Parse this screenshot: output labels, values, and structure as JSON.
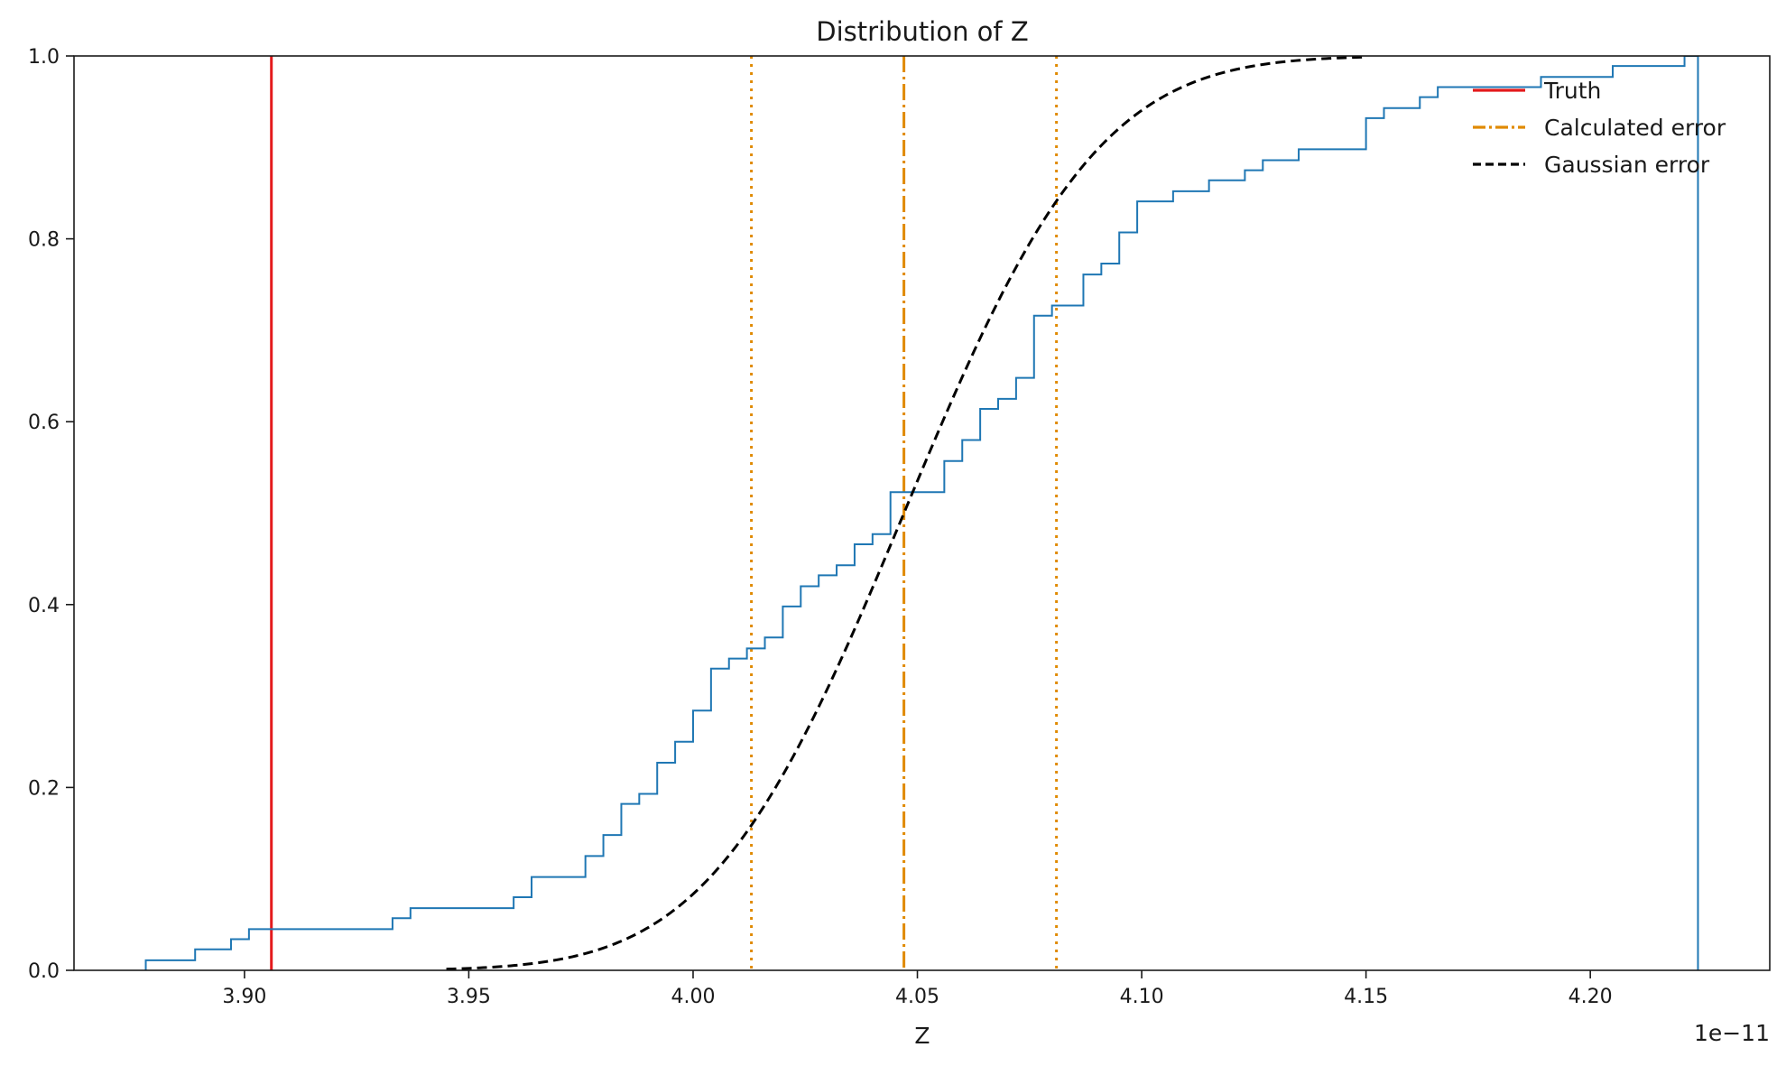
{
  "chart_data": {
    "type": "line",
    "title": "Distribution of Z",
    "xlabel": "Z",
    "ylabel": "",
    "x_offset_label": "1e−11",
    "xlim": [
      3.862,
      4.24
    ],
    "ylim": [
      0,
      1.0
    ],
    "x_ticks": [
      3.9,
      3.95,
      4.0,
      4.05,
      4.1,
      4.15,
      4.2
    ],
    "x_tick_labels": [
      "3.90",
      "3.95",
      "4.00",
      "4.05",
      "4.10",
      "4.15",
      "4.20"
    ],
    "y_ticks": [
      0.0,
      0.2,
      0.4,
      0.6,
      0.8,
      1.0
    ],
    "y_tick_labels": [
      "0.0",
      "0.2",
      "0.4",
      "0.6",
      "0.8",
      "1.0"
    ],
    "grid": false,
    "legend_position": "top-right",
    "legend": [
      {
        "label": "Truth",
        "color": "#e41a1c",
        "style": "solid"
      },
      {
        "label": "Calculated error",
        "color": "#e08a00",
        "style": "dashdot"
      },
      {
        "label": "Gaussian error",
        "color": "#000000",
        "style": "dashed"
      }
    ],
    "colors": {
      "ecdf": "#1f77b4",
      "truth": "#e41a1c",
      "calculated": "#e08a00",
      "gaussian": "#000000"
    },
    "truth_x": 3.906,
    "calculated_mean_x": 4.047,
    "calculated_bounds_x": [
      4.013,
      4.081
    ],
    "gaussian_mean": 4.047,
    "gaussian_sigma": 0.034,
    "gaussian_range": [
      3.945,
      4.15
    ],
    "ecdf_end_x": 4.224,
    "ecdf_steps": [
      [
        3.878,
        0.0
      ],
      [
        3.878,
        0.011
      ],
      [
        3.889,
        0.011
      ],
      [
        3.889,
        0.023
      ],
      [
        3.897,
        0.023
      ],
      [
        3.897,
        0.034
      ],
      [
        3.901,
        0.034
      ],
      [
        3.901,
        0.045
      ],
      [
        3.933,
        0.045
      ],
      [
        3.933,
        0.057
      ],
      [
        3.937,
        0.057
      ],
      [
        3.937,
        0.068
      ],
      [
        3.96,
        0.068
      ],
      [
        3.96,
        0.08
      ],
      [
        3.964,
        0.08
      ],
      [
        3.964,
        0.102
      ],
      [
        3.976,
        0.102
      ],
      [
        3.976,
        0.125
      ],
      [
        3.98,
        0.125
      ],
      [
        3.98,
        0.148
      ],
      [
        3.984,
        0.148
      ],
      [
        3.984,
        0.182
      ],
      [
        3.988,
        0.182
      ],
      [
        3.988,
        0.193
      ],
      [
        3.992,
        0.193
      ],
      [
        3.992,
        0.227
      ],
      [
        3.996,
        0.227
      ],
      [
        3.996,
        0.25
      ],
      [
        4.0,
        0.25
      ],
      [
        4.0,
        0.284
      ],
      [
        4.004,
        0.284
      ],
      [
        4.004,
        0.33
      ],
      [
        4.008,
        0.33
      ],
      [
        4.008,
        0.341
      ],
      [
        4.012,
        0.341
      ],
      [
        4.012,
        0.352
      ],
      [
        4.016,
        0.352
      ],
      [
        4.016,
        0.364
      ],
      [
        4.02,
        0.364
      ],
      [
        4.02,
        0.398
      ],
      [
        4.024,
        0.398
      ],
      [
        4.024,
        0.42
      ],
      [
        4.028,
        0.42
      ],
      [
        4.028,
        0.432
      ],
      [
        4.032,
        0.432
      ],
      [
        4.032,
        0.443
      ],
      [
        4.036,
        0.443
      ],
      [
        4.036,
        0.466
      ],
      [
        4.04,
        0.466
      ],
      [
        4.04,
        0.477
      ],
      [
        4.044,
        0.477
      ],
      [
        4.044,
        0.523
      ],
      [
        4.052,
        0.523
      ],
      [
        4.052,
        0.523
      ],
      [
        4.056,
        0.523
      ],
      [
        4.056,
        0.557
      ],
      [
        4.06,
        0.557
      ],
      [
        4.06,
        0.58
      ],
      [
        4.064,
        0.58
      ],
      [
        4.064,
        0.614
      ],
      [
        4.068,
        0.614
      ],
      [
        4.068,
        0.625
      ],
      [
        4.072,
        0.625
      ],
      [
        4.072,
        0.648
      ],
      [
        4.076,
        0.648
      ],
      [
        4.076,
        0.716
      ],
      [
        4.08,
        0.716
      ],
      [
        4.08,
        0.727
      ],
      [
        4.087,
        0.727
      ],
      [
        4.087,
        0.761
      ],
      [
        4.091,
        0.761
      ],
      [
        4.091,
        0.773
      ],
      [
        4.095,
        0.773
      ],
      [
        4.095,
        0.807
      ],
      [
        4.099,
        0.807
      ],
      [
        4.099,
        0.841
      ],
      [
        4.107,
        0.841
      ],
      [
        4.107,
        0.852
      ],
      [
        4.115,
        0.852
      ],
      [
        4.115,
        0.864
      ],
      [
        4.123,
        0.864
      ],
      [
        4.123,
        0.875
      ],
      [
        4.127,
        0.875
      ],
      [
        4.127,
        0.886
      ],
      [
        4.135,
        0.886
      ],
      [
        4.135,
        0.898
      ],
      [
        4.15,
        0.898
      ],
      [
        4.15,
        0.932
      ],
      [
        4.154,
        0.932
      ],
      [
        4.154,
        0.943
      ],
      [
        4.162,
        0.943
      ],
      [
        4.162,
        0.955
      ],
      [
        4.166,
        0.955
      ],
      [
        4.166,
        0.966
      ],
      [
        4.17,
        0.966
      ],
      [
        4.17,
        0.966
      ],
      [
        4.189,
        0.966
      ],
      [
        4.189,
        0.977
      ],
      [
        4.205,
        0.977
      ],
      [
        4.205,
        0.989
      ],
      [
        4.221,
        0.989
      ],
      [
        4.221,
        1.0
      ],
      [
        4.224,
        1.0
      ]
    ]
  }
}
